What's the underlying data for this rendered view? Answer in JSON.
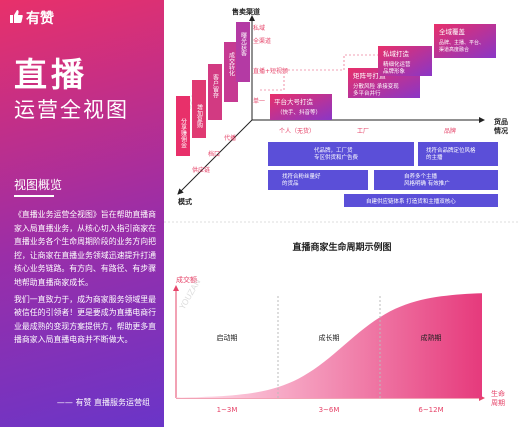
{
  "left": {
    "logo_text": "有赞",
    "title": "直播",
    "subtitle": "运营全视图",
    "section_title": "视图概览",
    "paragraphs": [
      "《直播业务运营全视图》旨在帮助直播商家入局直播业务，从核心切入指引商家在直播业务各个生命周期阶段的业务方向把控，让商家在直播业务领域迅速提升打通核心业务链路。有方向、有路径、有步骤地帮助直播商家成长。",
      "我们一直致力于，成为商家服务领域里最被信任的引领者！更是要成为直播电商行业最成熟的变现方案提供方，帮助更多直播商家入局直播电商并不断做大。"
    ],
    "author": "—— 有赞 直播服务运营组"
  },
  "diagram": {
    "watermark": "YOUZAN",
    "axis_sales": "售卖渠道",
    "axis_goods": "货品\n情况",
    "axis_mode": "模式",
    "channels": [
      "私域",
      "全渠道",
      "直播+短视频",
      "单一"
    ],
    "goods": [
      "个人（无货）",
      "工厂",
      "品牌"
    ],
    "modes": [
      "供应链",
      "档口",
      "代播"
    ],
    "steps": [
      "分享赚佣金",
      "增加复购",
      "客户留存",
      "成交转化",
      "曝光获客"
    ],
    "cards": [
      {
        "title": "平台大号打造",
        "sub": "（快手、抖音等）"
      },
      {
        "title": "矩阵号打造",
        "sub": "分散风险  承接变现\n多平台并行"
      },
      {
        "title": "私域打造",
        "sub": "精细化运营\n品牌形象"
      },
      {
        "title": "全域覆盖",
        "sub": "品牌、主播、平台、\n渠道高度融合"
      }
    ],
    "boxes": [
      "代品牌，工厂货\n专区供货和广告费",
      "找符合品牌定位风格\n的主播",
      "找符合粉丝量好\n的货品",
      "自养多个主播\n风格明确  有效推广",
      "自建供应链体系  打造货和主播双核心"
    ]
  },
  "chart_data": {
    "type": "area",
    "title": "直播商家生命周期示例图",
    "ylabel": "成交额",
    "xlabel": "生命\n周期",
    "stages": [
      {
        "name": "启动期",
        "period": "1~3M"
      },
      {
        "name": "成长期",
        "period": "3~6M"
      },
      {
        "name": "成熟期",
        "period": "6~12M"
      }
    ],
    "curve": "sigmoid",
    "gradient": [
      "#ffe3ec",
      "#e63a7c"
    ]
  }
}
